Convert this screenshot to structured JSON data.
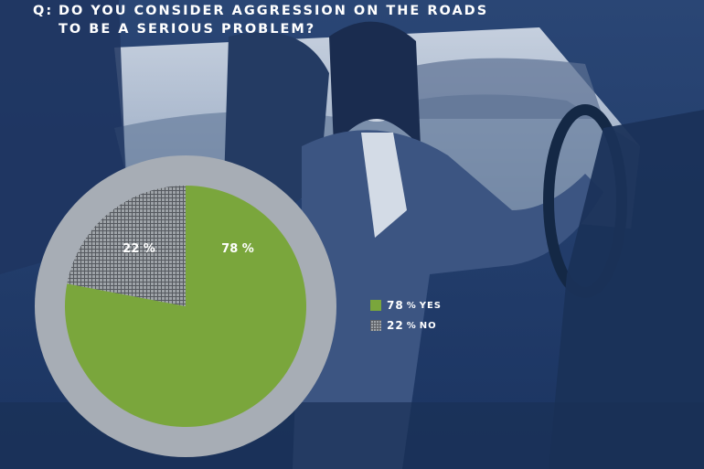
{
  "question": {
    "prefix": "Q:",
    "line1": "DO YOU CONSIDER AGGRESSION ON THE ROADS",
    "line2": "TO BE A SERIOUS PROBLEM?"
  },
  "chart_data": {
    "type": "pie",
    "categories": [
      "YES",
      "NO"
    ],
    "values": [
      78,
      22
    ],
    "slice_labels": [
      "78 %",
      "22 %"
    ],
    "legend": [
      {
        "value": "78",
        "unit": "%",
        "label": "YES"
      },
      {
        "value": "22",
        "unit": "%",
        "label": "NO"
      }
    ],
    "colors": {
      "yes": "#7aa63c",
      "no": "#8c9096",
      "ring": "#a7adb5"
    },
    "start_angle_deg": 0,
    "legend_position": "right"
  }
}
